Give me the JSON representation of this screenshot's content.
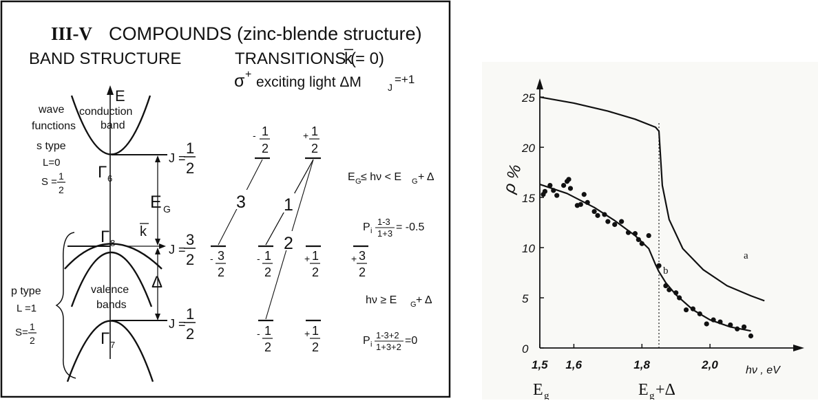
{
  "left": {
    "title_roman": "III-V",
    "title_rest": "COMPOUNDS (zinc-blende structure)",
    "band_structure": "BAND STRUCTURE",
    "transitions": "TRANSITIONS (",
    "k_vec": "k",
    "k_eq": "= 0)",
    "sigma": "σ",
    "sigma_sup": "+",
    "exciting": "exciting light  ΔM",
    "mj_sub": "J",
    "mj_val": "=+1",
    "E_axis": "E",
    "conduction": "conduction",
    "band": "band",
    "wave": "wave",
    "functions": "functions",
    "s_type": "s type",
    "L0": "L=0",
    "S_eq": "S =",
    "one": "1",
    "two": "2",
    "three": "3",
    "gamma": "Γ",
    "g6": "6",
    "g8": "8",
    "g7": "7",
    "J_eq": "J =",
    "E_G": "E",
    "E_G_sub": "G",
    "delta": "Δ",
    "p_type": "p  type",
    "L1": "L =1",
    "S_eq2": "S=",
    "valence": "valence",
    "bands": "bands",
    "minus": "-",
    "plus": "+",
    "tr1": "1",
    "tr2": "2",
    "tr3": "3",
    "cond1": "E",
    "cond1_sub": "G",
    "cond1_mid": "≤ hν < E",
    "cond1_end": "+ Δ",
    "pi_lbl": "P",
    "pi_sub": "i",
    "pi1_num": "1-3",
    "pi1_den": "1+3",
    "pi1_res": "= -0.5",
    "cond2": "hν  ≥ E",
    "cond2_end": "+ Δ",
    "pi2_num": "1-3+2",
    "pi2_den": "1+3+2",
    "pi2_res": "=0"
  },
  "chart_data": {
    "type": "line",
    "ylabel": "ρ %",
    "xlabel": "hν , eV",
    "x_ticks": [
      "1,5",
      "1,6",
      "1,8",
      "2,0"
    ],
    "y_ticks": [
      "0",
      "5",
      "10",
      "15",
      "20",
      "25"
    ],
    "xlim": [
      1.5,
      2.2
    ],
    "ylim": [
      0,
      27
    ],
    "marker_x": 1.85,
    "series": [
      {
        "name": "a",
        "x": [
          1.5,
          1.6,
          1.7,
          1.78,
          1.84,
          1.85,
          1.86,
          1.88,
          1.92,
          1.98,
          2.05,
          2.12,
          2.16
        ],
        "y": [
          25.0,
          24.4,
          23.6,
          22.8,
          22.0,
          21.6,
          16.2,
          12.8,
          9.9,
          7.8,
          6.2,
          5.2,
          4.7
        ]
      },
      {
        "name": "b",
        "x": [
          1.5,
          1.58,
          1.66,
          1.72,
          1.78,
          1.82,
          1.84,
          1.85,
          1.87,
          1.9,
          1.95,
          2.0,
          2.06,
          2.12
        ],
        "y": [
          16.3,
          15.4,
          14.0,
          12.7,
          11.2,
          9.9,
          8.3,
          7.6,
          6.5,
          5.3,
          3.8,
          2.8,
          2.1,
          1.7
        ]
      },
      {
        "name": "points",
        "x": [
          1.51,
          1.515,
          1.53,
          1.54,
          1.55,
          1.57,
          1.58,
          1.585,
          1.59,
          1.61,
          1.62,
          1.63,
          1.64,
          1.66,
          1.67,
          1.69,
          1.7,
          1.72,
          1.74,
          1.76,
          1.78,
          1.79,
          1.8,
          1.82,
          1.85,
          1.87,
          1.88,
          1.9,
          1.91,
          1.93,
          1.95,
          1.97,
          1.99,
          2.01,
          2.03,
          2.06,
          2.08,
          2.1,
          2.12
        ],
        "y": [
          15.3,
          15.6,
          16.2,
          15.7,
          15.2,
          16.2,
          16.6,
          16.8,
          15.9,
          14.2,
          14.3,
          15.3,
          14.5,
          13.6,
          13.2,
          13.3,
          12.6,
          12.3,
          12.6,
          11.5,
          11.4,
          10.8,
          10.4,
          11.2,
          8.2,
          6.2,
          5.8,
          5.5,
          5.0,
          3.8,
          3.9,
          3.4,
          2.4,
          2.8,
          2.6,
          2.3,
          1.9,
          2.1,
          1.2
        ]
      }
    ],
    "annotations": [
      "a",
      "b"
    ],
    "bottom_labels": {
      "eg": "E",
      "eg_sub": "g",
      "egd": "E",
      "egd_sub": "g",
      "egd_end": "+Δ"
    }
  }
}
